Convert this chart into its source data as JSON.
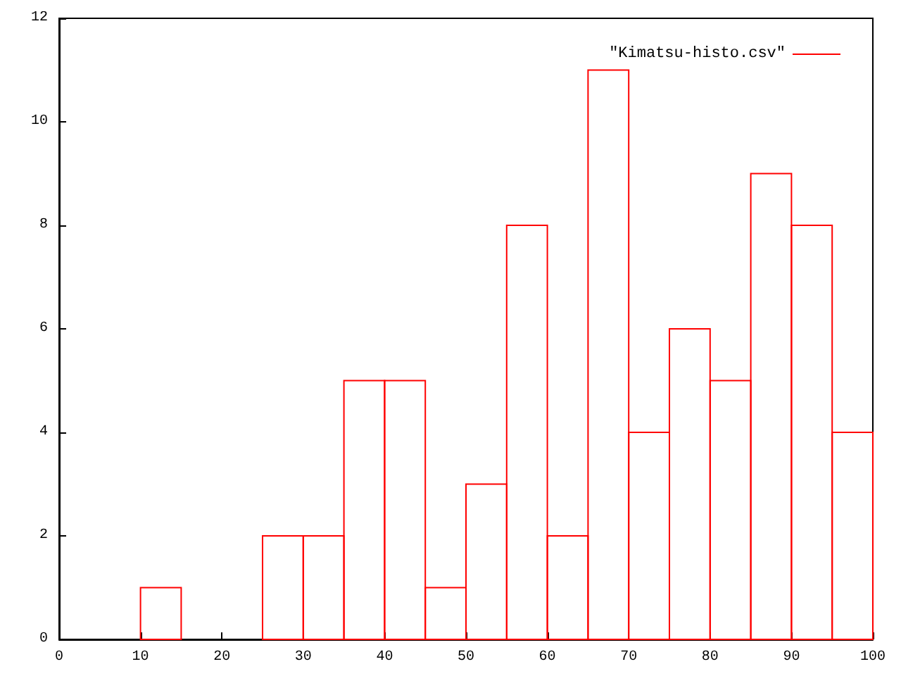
{
  "chart_data": {
    "type": "histogram",
    "bins": [
      10,
      15,
      20,
      25,
      30,
      35,
      40,
      45,
      50,
      55,
      60,
      65,
      70,
      75,
      80,
      85,
      90,
      95,
      100
    ],
    "series": [
      {
        "name": "\"Kimatsu-histo.csv\"",
        "color": "#ff0000",
        "values": [
          1,
          0,
          0,
          2,
          2,
          5,
          5,
          1,
          3,
          8,
          2,
          11,
          4,
          6,
          5,
          9,
          8,
          4
        ]
      }
    ],
    "xlim": [
      0,
      100
    ],
    "xticks": [
      0,
      10,
      20,
      30,
      40,
      50,
      60,
      70,
      80,
      90,
      100
    ],
    "ylim": [
      0,
      12
    ],
    "yticks": [
      0,
      2,
      4,
      6,
      8,
      10,
      12
    ],
    "legend": "top right"
  }
}
